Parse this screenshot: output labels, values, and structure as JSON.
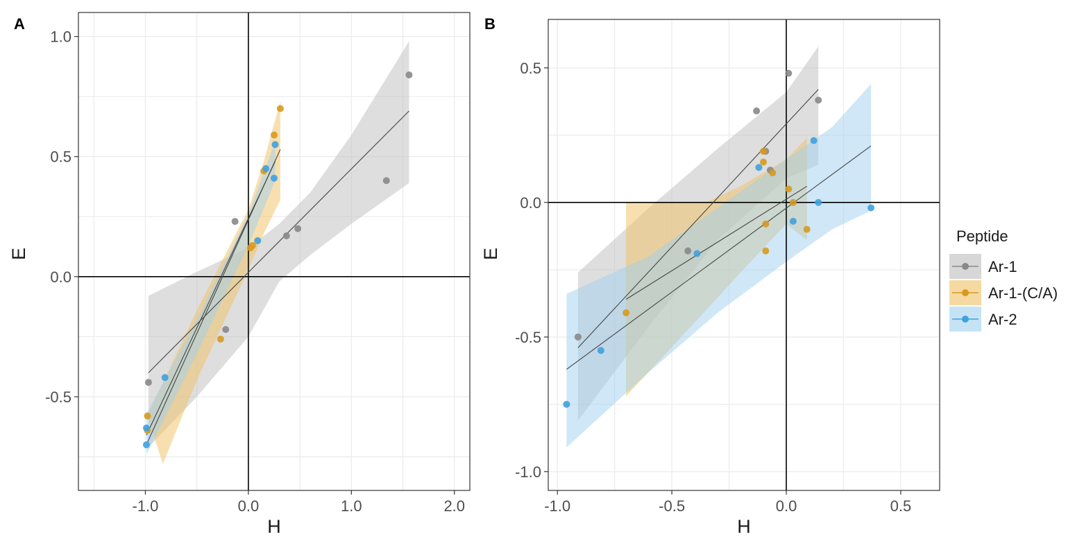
{
  "chart_data": [
    {
      "type": "scatter",
      "panel_label": "A",
      "xlabel": "H",
      "ylabel": "E",
      "xlim": [
        -1.65,
        2.15
      ],
      "ylim": [
        -0.89,
        1.1
      ],
      "xticks": [
        -1.0,
        0.0,
        1.0,
        2.0
      ],
      "xtick_labels": [
        "-1.0",
        "0.0",
        "1.0",
        "2.0"
      ],
      "yticks": [
        -0.5,
        0.0,
        0.5,
        1.0
      ],
      "ytick_labels": [
        "-0.5",
        "0.0",
        "0.5",
        "1.0"
      ],
      "grid": true,
      "reference_lines": {
        "x": 0,
        "y": 0
      },
      "series": [
        {
          "name": "Ar-1",
          "color": "#888888",
          "band": "#bdbdbd",
          "points": [
            [
              -0.97,
              -0.44
            ],
            [
              -0.13,
              0.23
            ],
            [
              -0.22,
              -0.22
            ],
            [
              0.37,
              0.17
            ],
            [
              0.48,
              0.2
            ],
            [
              1.34,
              0.4
            ],
            [
              1.56,
              0.84
            ]
          ],
          "fit": [
            [
              -0.97,
              -0.4
            ],
            [
              1.56,
              0.69
            ]
          ],
          "ci_upper": [
            [
              -0.97,
              -0.08
            ],
            [
              -0.5,
              0.02
            ],
            [
              0.0,
              0.12
            ],
            [
              0.3,
              0.22
            ],
            [
              0.6,
              0.35
            ],
            [
              1.0,
              0.59
            ],
            [
              1.56,
              0.98
            ]
          ],
          "ci_lower": [
            [
              -0.97,
              -0.71
            ],
            [
              -0.5,
              -0.5
            ],
            [
              0.0,
              -0.25
            ],
            [
              0.3,
              -0.02
            ],
            [
              0.6,
              0.09
            ],
            [
              1.0,
              0.22
            ],
            [
              1.56,
              0.39
            ]
          ]
        },
        {
          "name": "Ar-1-(C/A)",
          "color": "#d69a1f",
          "band": "#f0c060",
          "points": [
            [
              -0.98,
              -0.58
            ],
            [
              -0.98,
              -0.64
            ],
            [
              -0.27,
              -0.26
            ],
            [
              0.02,
              0.12
            ],
            [
              0.04,
              0.13
            ],
            [
              0.15,
              0.44
            ],
            [
              0.25,
              0.59
            ],
            [
              0.31,
              0.7
            ]
          ],
          "fit": [
            [
              -0.98,
              -0.69
            ],
            [
              0.31,
              0.53
            ]
          ],
          "ci_upper": [
            [
              -0.98,
              -0.58
            ],
            [
              -0.5,
              -0.14
            ],
            [
              0.0,
              0.28
            ],
            [
              0.15,
              0.48
            ],
            [
              0.31,
              0.73
            ]
          ],
          "ci_lower": [
            [
              -0.83,
              -0.78
            ],
            [
              -0.5,
              -0.43
            ],
            [
              0.0,
              0.03
            ],
            [
              0.15,
              0.18
            ],
            [
              0.31,
              0.32
            ]
          ]
        },
        {
          "name": "Ar-2",
          "color": "#3fa1de",
          "band": "#9fd0ef",
          "points": [
            [
              -0.99,
              -0.63
            ],
            [
              -0.99,
              -0.7
            ],
            [
              -0.81,
              -0.42
            ],
            [
              0.09,
              0.15
            ],
            [
              0.17,
              0.45
            ],
            [
              0.25,
              0.41
            ],
            [
              0.26,
              0.55
            ]
          ],
          "fit": [
            [
              -0.99,
              -0.66
            ],
            [
              0.26,
              0.48
            ]
          ],
          "ci_upper": [
            [
              -0.99,
              -0.57
            ],
            [
              -0.5,
              -0.18
            ],
            [
              0.0,
              0.26
            ],
            [
              0.26,
              0.56
            ]
          ],
          "ci_lower": [
            [
              -0.99,
              -0.74
            ],
            [
              -0.5,
              -0.32
            ],
            [
              0.0,
              0.13
            ],
            [
              0.26,
              0.4
            ]
          ]
        }
      ]
    },
    {
      "type": "scatter",
      "panel_label": "B",
      "xlabel": "H",
      "ylabel": "E",
      "xlim": [
        -1.04,
        0.67
      ],
      "ylim": [
        -1.07,
        0.68
      ],
      "xticks": [
        -1.0,
        -0.5,
        0.0,
        0.5
      ],
      "xtick_labels": [
        "-1.0",
        "-0.5",
        "0.0",
        "0.5"
      ],
      "yticks": [
        -1.0,
        -0.5,
        0.0,
        0.5
      ],
      "ytick_labels": [
        "-1.0",
        "-0.5",
        "0.0",
        "0.5"
      ],
      "grid": true,
      "reference_lines": {
        "x": 0,
        "y": 0
      },
      "series": [
        {
          "name": "Ar-1",
          "color": "#888888",
          "band": "#bdbdbd",
          "points": [
            [
              -0.91,
              -0.5
            ],
            [
              -0.43,
              -0.18
            ],
            [
              -0.13,
              0.34
            ],
            [
              -0.09,
              0.19
            ],
            [
              -0.07,
              0.12
            ],
            [
              0.01,
              0.48
            ],
            [
              0.14,
              0.38
            ]
          ],
          "fit": [
            [
              -0.91,
              -0.54
            ],
            [
              0.14,
              0.42
            ]
          ],
          "ci_upper": [
            [
              -0.91,
              -0.26
            ],
            [
              -0.6,
              -0.02
            ],
            [
              -0.3,
              0.2
            ],
            [
              0.0,
              0.41
            ],
            [
              0.14,
              0.58
            ]
          ],
          "ci_lower": [
            [
              -0.91,
              -0.81
            ],
            [
              -0.6,
              -0.46
            ],
            [
              -0.3,
              -0.14
            ],
            [
              0.0,
              0.09
            ],
            [
              0.14,
              0.14
            ]
          ]
        },
        {
          "name": "Ar-1-(C/A)",
          "color": "#d69a1f",
          "band": "#f0c060",
          "points": [
            [
              -0.7,
              -0.41
            ],
            [
              -0.1,
              0.19
            ],
            [
              -0.1,
              0.15
            ],
            [
              -0.06,
              0.11
            ],
            [
              -0.09,
              -0.08
            ],
            [
              -0.09,
              -0.18
            ],
            [
              0.01,
              0.05
            ],
            [
              0.03,
              0.0
            ],
            [
              0.09,
              -0.1
            ]
          ],
          "fit": [
            [
              -0.7,
              -0.36
            ],
            [
              0.09,
              0.06
            ]
          ],
          "ci_upper": [
            [
              -0.7,
              0.0
            ],
            [
              -0.35,
              0.0
            ],
            [
              -0.2,
              0.06
            ],
            [
              0.0,
              0.16
            ],
            [
              0.09,
              0.24
            ]
          ],
          "ci_lower": [
            [
              -0.7,
              -0.72
            ],
            [
              -0.35,
              -0.4
            ],
            [
              -0.2,
              -0.26
            ],
            [
              0.0,
              -0.08
            ],
            [
              0.09,
              -0.14
            ]
          ]
        },
        {
          "name": "Ar-2",
          "color": "#3fa1de",
          "band": "#9fd0ef",
          "points": [
            [
              -0.96,
              -0.75
            ],
            [
              -0.81,
              -0.55
            ],
            [
              -0.39,
              -0.19
            ],
            [
              -0.12,
              0.13
            ],
            [
              0.03,
              -0.07
            ],
            [
              0.12,
              0.23
            ],
            [
              0.14,
              0.0
            ],
            [
              0.37,
              -0.02
            ]
          ],
          "fit": [
            [
              -0.96,
              -0.62
            ],
            [
              0.37,
              0.21
            ]
          ],
          "ci_upper": [
            [
              -0.96,
              -0.34
            ],
            [
              -0.6,
              -0.2
            ],
            [
              -0.3,
              -0.02
            ],
            [
              0.0,
              0.16
            ],
            [
              0.2,
              0.28
            ],
            [
              0.37,
              0.44
            ]
          ],
          "ci_lower": [
            [
              -0.96,
              -0.91
            ],
            [
              -0.6,
              -0.63
            ],
            [
              -0.3,
              -0.41
            ],
            [
              0.0,
              -0.22
            ],
            [
              0.2,
              -0.1
            ],
            [
              0.37,
              -0.03
            ]
          ]
        }
      ]
    }
  ],
  "legend": {
    "title": "Peptide",
    "placement": "right",
    "entries": [
      {
        "name": "Ar-1",
        "color": "#888888",
        "band": "#bdbdbd"
      },
      {
        "name": "Ar-1-(C/A)",
        "color": "#d69a1f",
        "band": "#f0c060"
      },
      {
        "name": "Ar-2",
        "color": "#3fa1de",
        "band": "#9fd0ef"
      }
    ]
  }
}
